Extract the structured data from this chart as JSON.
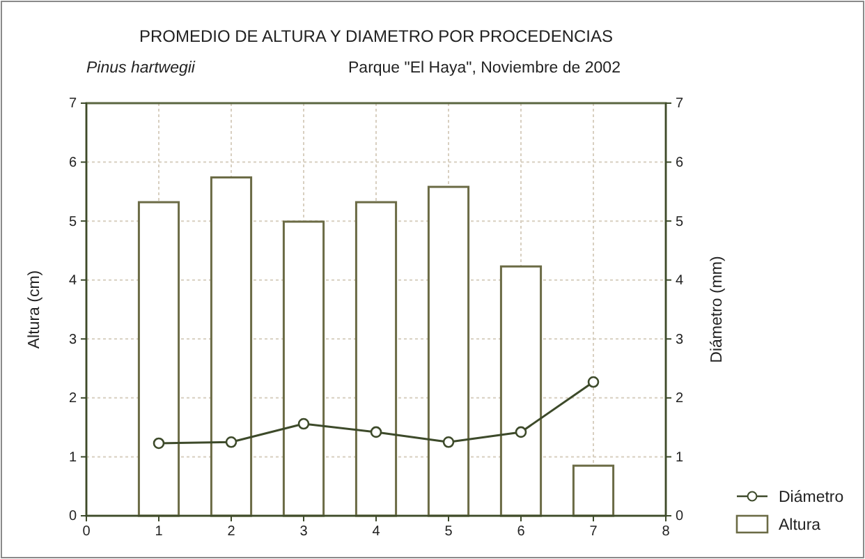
{
  "chart_data": {
    "type": "bar",
    "title": "PROMEDIO DE ALTURA Y DIAMETRO POR PROCEDENCIAS",
    "subtitle": "Pinus hartwegii",
    "annotations": [
      "Parque \"El Haya\", Noviembre de 2002"
    ],
    "xlabel": null,
    "ylabel": "Altura (cm)",
    "y2label": "Diámetro (mm)",
    "x": [
      1,
      2,
      3,
      4,
      5,
      6,
      7
    ],
    "xlim": [
      0,
      8
    ],
    "xticks": [
      0,
      1,
      2,
      3,
      4,
      5,
      6,
      7,
      8
    ],
    "ylim": [
      0,
      7
    ],
    "yticks": [
      0,
      1,
      2,
      3,
      4,
      5,
      6,
      7
    ],
    "y2lim": [
      0,
      7
    ],
    "y2ticks": [
      0,
      1,
      2,
      3,
      4,
      5,
      6,
      7
    ],
    "series": [
      {
        "name": "Diámetro",
        "type": "line",
        "axis": "y2",
        "color": "#3d4a2a",
        "values": [
          1.23,
          1.25,
          1.56,
          1.42,
          1.25,
          1.42,
          2.27
        ],
        "marker": "circle",
        "line_style": "solid"
      },
      {
        "name": "Altura",
        "color": "#6b6b45",
        "values": [
          5.32,
          5.74,
          4.99,
          5.32,
          5.58,
          4.23,
          0.85
        ]
      }
    ],
    "grid": true,
    "legend": "bottom right"
  }
}
